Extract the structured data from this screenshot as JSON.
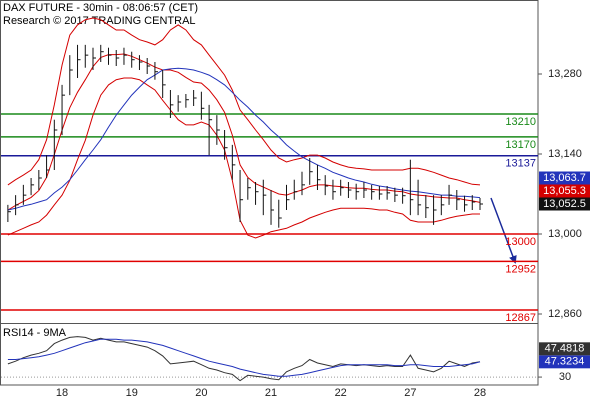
{
  "chart_data": [
    {
      "type": "hlc",
      "title": "DAX FUTURE - 30min - 08:06:57 (CET)",
      "subtitle": "Research © 2017 TRADING CENTRAL",
      "categories": [
        null,
        null,
        null,
        null,
        null,
        null,
        null,
        "18",
        null,
        null,
        null,
        null,
        null,
        null,
        null,
        null,
        "19",
        null,
        null,
        null,
        null,
        null,
        null,
        null,
        null,
        "20",
        null,
        null,
        null,
        null,
        null,
        null,
        null,
        null,
        "21",
        null,
        null,
        null,
        null,
        null,
        null,
        null,
        null,
        "22",
        null,
        null,
        null,
        null,
        null,
        null,
        null,
        null,
        "27",
        null,
        null,
        null,
        null,
        null,
        null,
        null,
        null,
        "28"
      ],
      "high": [
        13051,
        13068,
        13086,
        13098,
        13112,
        13138,
        13200,
        13261,
        13313,
        13331,
        13331,
        13326,
        13331,
        13326,
        13322,
        13326,
        13319,
        13313,
        13308,
        13301,
        13287,
        13252,
        13243,
        13245,
        13252,
        13249,
        13226,
        13208,
        13182,
        13156,
        13112,
        13098,
        13091,
        13095,
        13077,
        13060,
        13086,
        13095,
        13109,
        13133,
        13121,
        13103,
        13095,
        13095,
        13091,
        13088,
        13091,
        13086,
        13084,
        13084,
        13081,
        13081,
        13130,
        13095,
        13068,
        13068,
        13068,
        13086,
        13077,
        13067,
        13068,
        13063
      ],
      "low": [
        13021,
        13033,
        13051,
        13068,
        13077,
        13098,
        13112,
        13173,
        13243,
        13273,
        13291,
        13287,
        13301,
        13296,
        13294,
        13296,
        13291,
        13287,
        13280,
        13270,
        13238,
        13203,
        13214,
        13221,
        13224,
        13200,
        13138,
        13156,
        13130,
        13095,
        13021,
        13060,
        13051,
        13033,
        13016,
        13011,
        13042,
        13060,
        13068,
        13086,
        13077,
        13068,
        13060,
        13067,
        13063,
        13060,
        13063,
        13060,
        13060,
        13060,
        13056,
        13053,
        13033,
        13033,
        13028,
        13016,
        13033,
        13051,
        13042,
        13039,
        13042,
        13042
      ],
      "close": [
        13039,
        13051,
        13068,
        13086,
        13098,
        13112,
        13182,
        13243,
        13287,
        13305,
        13313,
        13308,
        13319,
        13313,
        13308,
        13313,
        13305,
        13301,
        13294,
        13284,
        13261,
        13226,
        13231,
        13235,
        13238,
        13220,
        13200,
        13182,
        13151,
        13121,
        13060,
        13081,
        13074,
        13068,
        13042,
        13028,
        13060,
        13074,
        13086,
        13109,
        13095,
        13084,
        13074,
        13081,
        13077,
        13074,
        13077,
        13074,
        13070,
        13072,
        13068,
        13067,
        13060,
        13051,
        13046,
        13042,
        13051,
        13068,
        13060,
        13051,
        13056,
        13052.5
      ],
      "close_labels": [
        null,
        null,
        null,
        null,
        null,
        null,
        null,
        null,
        null,
        null,
        null,
        null,
        null,
        null,
        null,
        null,
        null,
        null,
        null,
        null,
        null,
        null,
        null,
        null,
        null,
        null,
        null,
        null,
        null,
        null,
        null,
        null,
        null,
        null,
        null,
        null,
        null,
        null,
        null,
        null,
        null,
        null,
        null,
        null,
        null,
        null,
        null,
        null,
        null,
        null,
        null,
        null,
        null,
        null,
        null,
        null,
        null,
        null,
        null,
        null,
        null,
        "13,052.5"
      ],
      "bar_color": "#111111",
      "lines": [
        {
          "color": "#d40000",
          "values": [
            13086,
            13095,
            13103,
            13112,
            13130,
            13165,
            13226,
            13296,
            13348,
            13366,
            13375,
            13378,
            13375,
            13366,
            13357,
            13357,
            13348,
            13340,
            13336,
            13331,
            13340,
            13357,
            13366,
            13357,
            13340,
            13331,
            13313,
            13296,
            13278,
            13252,
            13217,
            13200,
            13182,
            13165,
            13147,
            13133,
            13126,
            13130,
            13133,
            13138,
            13138,
            13133,
            13126,
            13121,
            13117,
            13115,
            13114,
            13112,
            13112,
            13112,
            13112,
            13112,
            13115,
            13115,
            13112,
            13108,
            13103,
            13098,
            13095,
            13091,
            13087,
            13086
          ]
        },
        {
          "color": "#d40000",
          "values": [
            13042,
            13050,
            13057,
            13064,
            13076,
            13099,
            13139,
            13182,
            13221,
            13248,
            13270,
            13293,
            13309,
            13314,
            13314,
            13315,
            13311,
            13305,
            13299,
            13292,
            13287,
            13287,
            13283,
            13274,
            13266,
            13264,
            13252,
            13235,
            13213,
            13173,
            13121,
            13099,
            13088,
            13082,
            13076,
            13070,
            13068,
            13073,
            13077,
            13083,
            13086,
            13086,
            13084,
            13083,
            13081,
            13080,
            13080,
            13078,
            13077,
            13077,
            13075,
            13074,
            13070,
            13068,
            13067,
            13065,
            13064,
            13063,
            13063,
            13060,
            13058,
            13055.3
          ],
          "value_labels": [
            null,
            null,
            null,
            null,
            null,
            null,
            null,
            null,
            null,
            null,
            null,
            null,
            null,
            null,
            null,
            null,
            null,
            null,
            null,
            null,
            null,
            null,
            null,
            null,
            null,
            null,
            null,
            null,
            null,
            null,
            null,
            null,
            null,
            null,
            null,
            null,
            null,
            null,
            null,
            null,
            null,
            null,
            null,
            null,
            null,
            null,
            null,
            null,
            null,
            null,
            null,
            null,
            null,
            null,
            null,
            null,
            null,
            null,
            null,
            null,
            null,
            "13,055.3"
          ]
        },
        {
          "color": "#d40000",
          "values": [
            12998,
            13004,
            13010,
            13016,
            13021,
            13033,
            13051,
            13068,
            13094,
            13130,
            13164,
            13208,
            13243,
            13261,
            13270,
            13273,
            13273,
            13270,
            13261,
            13252,
            13234,
            13217,
            13200,
            13191,
            13191,
            13196,
            13191,
            13173,
            13147,
            13094,
            13024,
            12998,
            12993,
            12998,
            13004,
            13007,
            13010,
            13016,
            13021,
            13028,
            13033,
            13038,
            13042,
            13045,
            13045,
            13045,
            13045,
            13044,
            13042,
            13042,
            13038,
            13035,
            13024,
            13021,
            13021,
            13021,
            13024,
            13028,
            13031,
            13033,
            13035,
            13035
          ]
        },
        {
          "color": "#2233bb",
          "values": [
            13042,
            13045,
            13049,
            13052,
            13056,
            13060,
            13072,
            13082,
            13095,
            13112,
            13130,
            13147,
            13165,
            13187,
            13208,
            13226,
            13243,
            13257,
            13270,
            13278,
            13287,
            13289,
            13290,
            13289,
            13287,
            13283,
            13278,
            13270,
            13261,
            13248,
            13234,
            13222,
            13208,
            13196,
            13182,
            13170,
            13156,
            13145,
            13135,
            13128,
            13121,
            13115,
            13108,
            13103,
            13098,
            13094,
            13091,
            13087,
            13084,
            13082,
            13079,
            13077,
            13075,
            13074,
            13072,
            13070,
            13068,
            13068,
            13066,
            13066,
            13065,
            13063.7
          ],
          "value_labels": [
            null,
            null,
            null,
            null,
            null,
            null,
            null,
            null,
            null,
            null,
            null,
            null,
            null,
            null,
            null,
            null,
            null,
            null,
            null,
            null,
            null,
            null,
            null,
            null,
            null,
            null,
            null,
            null,
            null,
            null,
            null,
            null,
            null,
            null,
            null,
            null,
            null,
            null,
            null,
            null,
            null,
            null,
            null,
            null,
            null,
            null,
            null,
            null,
            null,
            null,
            null,
            null,
            null,
            null,
            null,
            null,
            null,
            null,
            null,
            null,
            null,
            "13,063.7"
          ]
        }
      ],
      "levels": [
        {
          "value": 13210,
          "color": "#1a8a1a"
        },
        {
          "value": 13170,
          "color": "#1a8a1a"
        },
        {
          "value": 13137,
          "color": "#1a1a99"
        },
        {
          "value": 13000,
          "color": "#e00000"
        },
        {
          "value": 12952,
          "color": "#e00000"
        },
        {
          "value": 12867,
          "color": "#e00000"
        }
      ],
      "ylim": [
        12846,
        13409.5
      ],
      "yticks": [
        {
          "value": 13280,
          "label": "13,280"
        },
        {
          "value": 13140,
          "label": "13,140"
        },
        {
          "value": 13000,
          "label": "13,000"
        },
        {
          "value": 12860,
          "label": "12,860"
        }
      ]
    },
    {
      "type": "line",
      "title": "RSI14 - 9MA",
      "series": [
        {
          "color": "#333333",
          "values": [
            45,
            48,
            52,
            55,
            57,
            60,
            68,
            72,
            75,
            76,
            75,
            72,
            74,
            72,
            70,
            70,
            68,
            66,
            64,
            60,
            54,
            45,
            46,
            47,
            48,
            44,
            40,
            38,
            35,
            33,
            26,
            32,
            31,
            30,
            28,
            27,
            36,
            40,
            43,
            50,
            46,
            44,
            42,
            45,
            44,
            43,
            44,
            43,
            42,
            43,
            42,
            42,
            55,
            40,
            38,
            36,
            40,
            48,
            45,
            42,
            46,
            47.4818
          ],
          "value_labels": [
            null,
            null,
            null,
            null,
            null,
            null,
            null,
            null,
            null,
            null,
            null,
            null,
            null,
            null,
            null,
            null,
            null,
            null,
            null,
            null,
            null,
            null,
            null,
            null,
            null,
            null,
            null,
            null,
            null,
            null,
            null,
            null,
            null,
            null,
            null,
            null,
            null,
            null,
            null,
            null,
            null,
            null,
            null,
            null,
            null,
            null,
            null,
            null,
            null,
            null,
            null,
            null,
            null,
            null,
            null,
            null,
            null,
            null,
            null,
            null,
            null,
            "47.4818"
          ]
        },
        {
          "color": "#2233bb",
          "values": [
            50,
            50,
            51,
            52,
            53,
            55,
            57,
            60,
            63,
            66,
            69,
            71,
            73,
            73,
            73,
            72,
            72,
            71,
            70,
            68,
            66,
            63,
            60,
            57,
            54,
            51,
            48,
            46,
            44,
            42,
            39,
            37,
            35,
            33,
            32,
            31,
            31,
            32,
            33,
            35,
            37,
            39,
            41,
            43,
            44,
            44,
            44,
            44,
            44,
            44,
            43,
            43,
            44,
            44,
            43,
            42,
            42,
            42,
            43,
            44,
            45,
            47.3234
          ],
          "value_labels": [
            null,
            null,
            null,
            null,
            null,
            null,
            null,
            null,
            null,
            null,
            null,
            null,
            null,
            null,
            null,
            null,
            null,
            null,
            null,
            null,
            null,
            null,
            null,
            null,
            null,
            null,
            null,
            null,
            null,
            null,
            null,
            null,
            null,
            null,
            null,
            null,
            null,
            null,
            null,
            null,
            null,
            null,
            null,
            null,
            null,
            null,
            null,
            null,
            null,
            null,
            null,
            null,
            null,
            null,
            null,
            null,
            null,
            null,
            null,
            null,
            null,
            "47.3234"
          ]
        }
      ],
      "ylim": [
        21,
        88
      ],
      "yticks": [
        30
      ]
    }
  ]
}
